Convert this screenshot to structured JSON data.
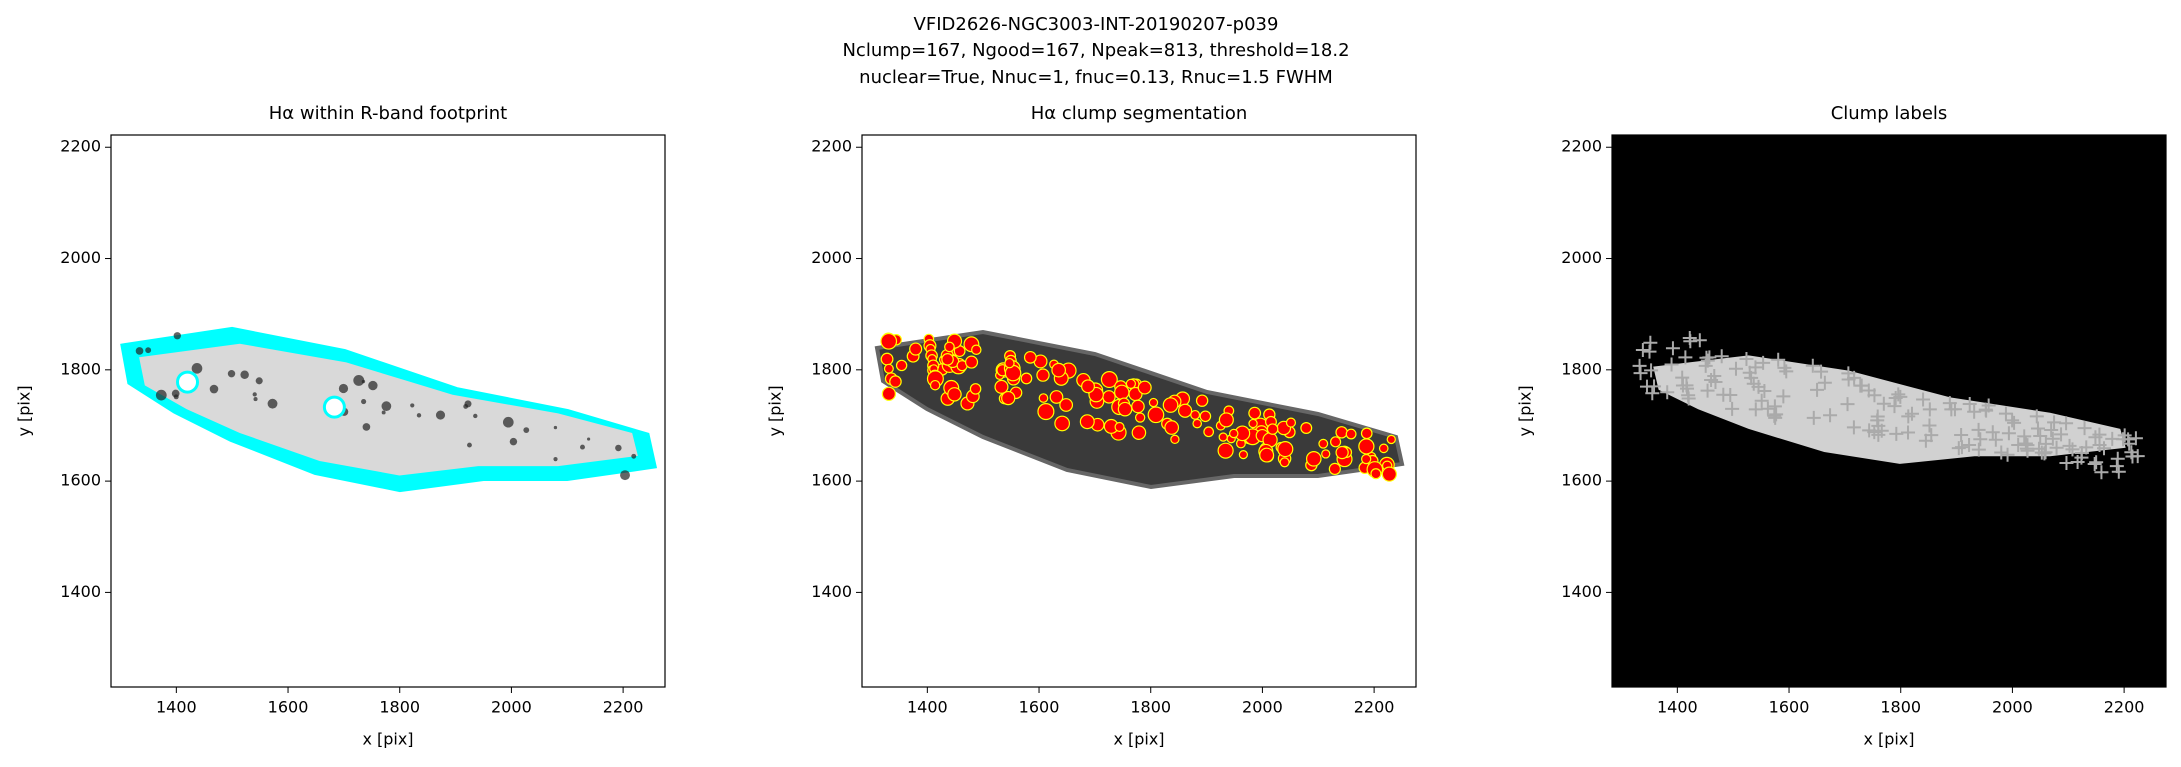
{
  "figure_title": [
    "VFID2626-NGC3003-INT-20190207-p039",
    "Nclump=167, Ngood=167, Npeak=813, threshold=18.2",
    "nuclear=True, Nnuc=1, fnuc=0.13, Rnuc=1.5 FWHM"
  ],
  "chart_data": [
    {
      "type": "image",
      "title": "Hα within R-band footprint",
      "xlabel": "x [pix]",
      "ylabel": "y [pix]",
      "xlim": [
        1283,
        2275
      ],
      "ylim": [
        1230,
        2222
      ],
      "xticks": [
        1400,
        1600,
        1800,
        2000,
        2200
      ],
      "yticks": [
        1400,
        1600,
        1800,
        2000,
        2200
      ],
      "markers": {
        "x": [
          1420,
          1683
        ],
        "y": [
          1778,
          1733
        ],
        "color": "#00ffff"
      }
    },
    {
      "type": "image",
      "title": "Hα clump segmentation",
      "xlabel": "x [pix]",
      "ylabel": "y [pix]",
      "xlim": [
        1283,
        2275
      ],
      "ylim": [
        1230,
        2222
      ],
      "xticks": [
        1400,
        1600,
        1800,
        2000,
        2200
      ],
      "yticks": [
        1400,
        1600,
        1800,
        2000,
        2200
      ]
    },
    {
      "type": "image",
      "title": "Clump labels",
      "xlabel": "x [pix]",
      "ylabel": "y [pix]",
      "xlim": [
        1283,
        2275
      ],
      "ylim": [
        1230,
        2222
      ],
      "xticks": [
        1400,
        1600,
        1800,
        2000,
        2200
      ],
      "yticks": [
        1400,
        1600,
        1800,
        2000,
        2200
      ]
    }
  ]
}
